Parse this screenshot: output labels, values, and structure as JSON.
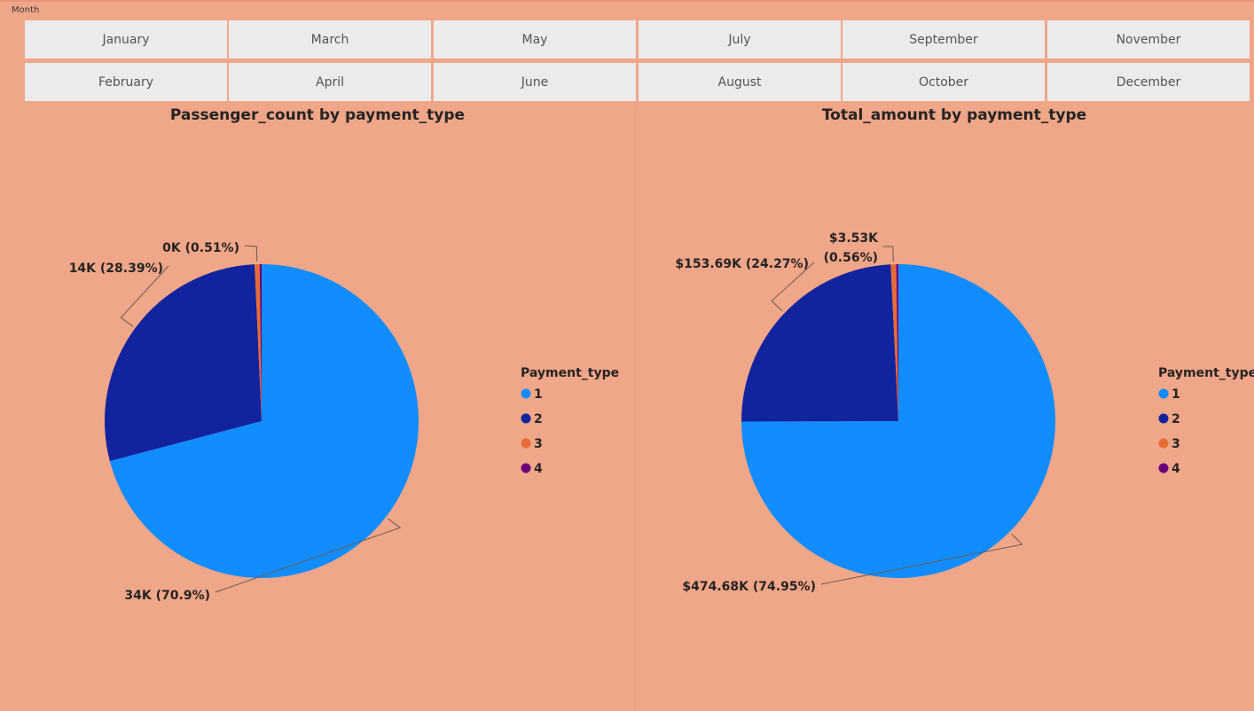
{
  "slicer": {
    "title": "Month",
    "months": [
      "January",
      "March",
      "May",
      "July",
      "September",
      "November",
      "February",
      "April",
      "June",
      "August",
      "October",
      "December"
    ]
  },
  "colors": {
    "1": "#118dff",
    "2": "#12239e",
    "3": "#e66c37",
    "4": "#6b007b",
    "background": "#f0a688",
    "button": "#ebebeb"
  },
  "chart_data": [
    {
      "type": "pie",
      "title": "Passenger_count by payment_type",
      "legend_title": "Payment_type",
      "legend_position": "right",
      "categories": [
        "1",
        "2",
        "3",
        "4"
      ],
      "values": [
        34,
        14,
        0.25,
        0.1
      ],
      "percents": [
        70.9,
        28.39,
        0.51,
        0.2
      ],
      "labels": [
        "34K (70.9%)",
        "14K (28.39%)",
        "0K (0.51%)",
        ""
      ]
    },
    {
      "type": "pie",
      "title": "Total_amount by payment_type",
      "legend_title": "Payment_type",
      "legend_position": "right",
      "categories": [
        "1",
        "2",
        "3",
        "4"
      ],
      "values": [
        474.68,
        153.69,
        3.53,
        1.4
      ],
      "percents": [
        74.95,
        24.27,
        0.56,
        0.22
      ],
      "labels": [
        "$474.68K (74.95%)",
        "$153.69K (24.27%)",
        "$3.53K (0.56%)",
        ""
      ]
    }
  ]
}
